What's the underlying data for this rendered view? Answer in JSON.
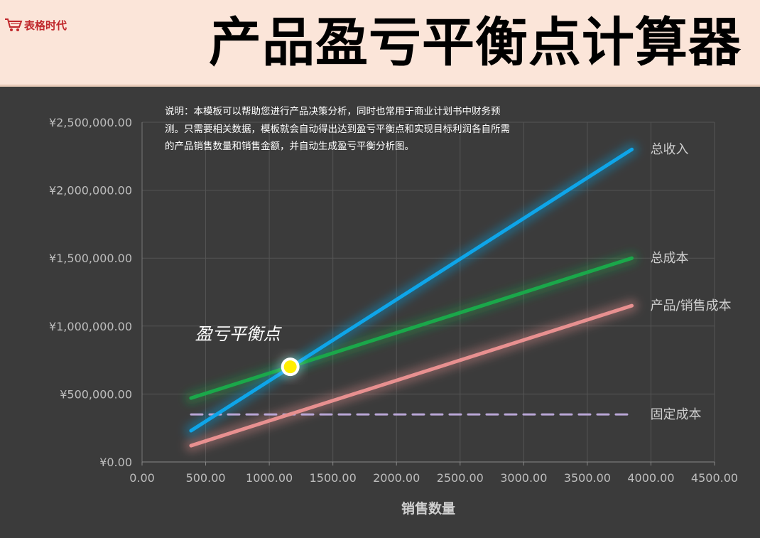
{
  "header": {
    "logo_text": "表格时代",
    "title": "产品盈亏平衡点计算器"
  },
  "description": "说明：本模板可以帮助您进行产品决策分析，同时也常用于商业计划书中财务预测。只需要相关数据，模板就会自动得出达到盈亏平衡点和实现目标利润各自所需的产品销售数量和销售金额，并自动生成盈亏平衡分析图。",
  "colors": {
    "revenue": "#0ea5e9",
    "total_cost": "#1aa84a",
    "product_cost": "#e89090",
    "fixed_cost": "#b9a6d6",
    "break_even_point": "#ffee00",
    "background": "#3b3b3b",
    "header_background": "#fbe5d9"
  },
  "chart_data": {
    "type": "line",
    "title": "",
    "xlabel": "销售数量",
    "ylabel": "",
    "xlim": [
      0,
      4500
    ],
    "ylim": [
      0,
      2500000
    ],
    "grid": true,
    "x_ticks": [
      "0.00",
      "500.00",
      "1000.00",
      "1500.00",
      "2000.00",
      "2500.00",
      "3000.00",
      "3500.00",
      "4000.00",
      "4500.00"
    ],
    "y_ticks": [
      "¥0.00",
      "¥500,000.00",
      "¥1,000,000.00",
      "¥1,500,000.00",
      "¥2,000,000.00",
      "¥2,500,000.00"
    ],
    "series": [
      {
        "name": "总收入",
        "color": "#0ea5e9",
        "x": [
          385,
          3850
        ],
        "y": [
          230000,
          2300000
        ],
        "style": "solid"
      },
      {
        "name": "总成本",
        "color": "#1aa84a",
        "x": [
          385,
          3850
        ],
        "y": [
          470000,
          1500000
        ],
        "style": "solid"
      },
      {
        "name": "产品/销售成本",
        "color": "#e89090",
        "x": [
          385,
          3850
        ],
        "y": [
          120000,
          1150000
        ],
        "style": "solid"
      },
      {
        "name": "固定成本",
        "color": "#b9a6d6",
        "x": [
          385,
          3850
        ],
        "y": [
          350000,
          350000
        ],
        "style": "dashed"
      }
    ],
    "annotations": [
      {
        "label": "盈亏平衡点",
        "x": 1165,
        "y": 700000
      }
    ]
  }
}
